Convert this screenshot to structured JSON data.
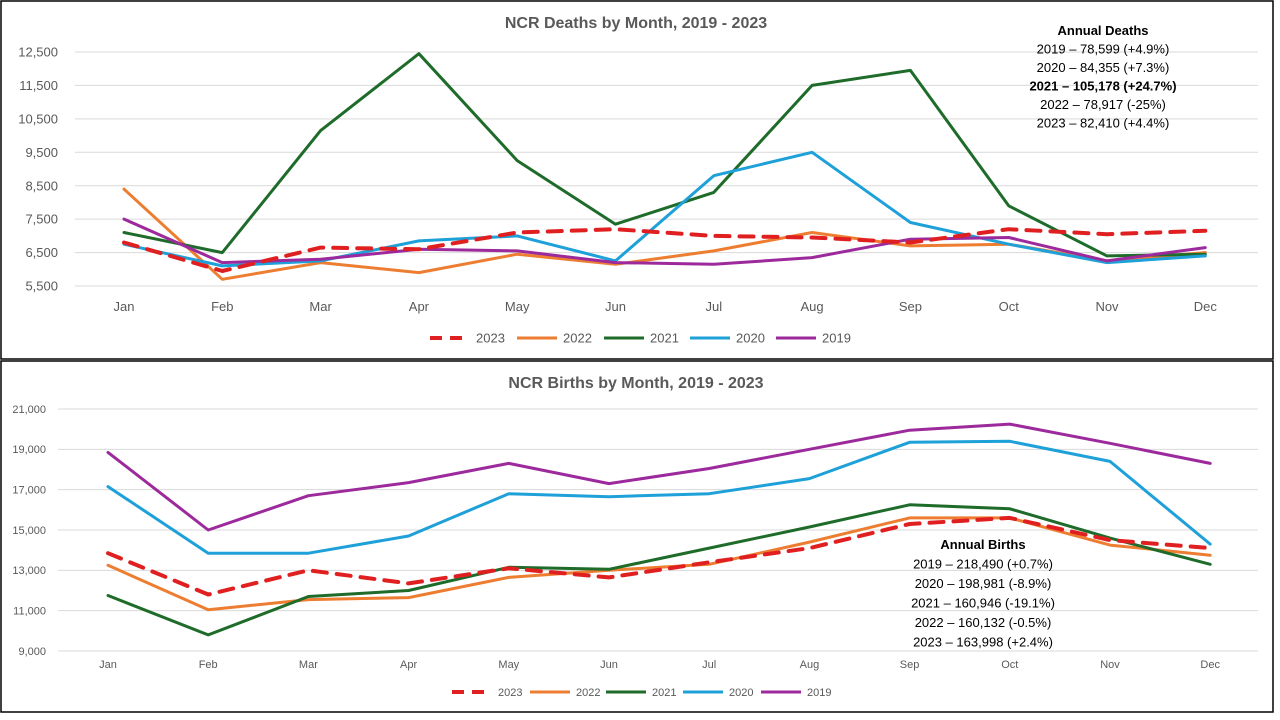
{
  "chart_data": [
    {
      "type": "line",
      "title": "NCR Deaths by Month, 2019 - 2023",
      "categories": [
        "Jan",
        "Feb",
        "Mar",
        "Apr",
        "May",
        "Jun",
        "Jul",
        "Aug",
        "Sep",
        "Oct",
        "Nov",
        "Dec"
      ],
      "ylim": [
        5500,
        12500
      ],
      "yticks": [
        "5,500",
        "6,500",
        "7,500",
        "8,500",
        "9,500",
        "10,500",
        "11,500",
        "12,500"
      ],
      "ytick_values": [
        5500,
        6500,
        7500,
        8500,
        9500,
        10500,
        11500,
        12500
      ],
      "grid": true,
      "legend_position": "bottom",
      "series": [
        {
          "name": "2023",
          "color": "#e02020",
          "dashed": true,
          "values": [
            6800,
            5950,
            6650,
            6600,
            7100,
            7200,
            7000,
            6950,
            6800,
            7200,
            7050,
            7150
          ]
        },
        {
          "name": "2022",
          "color": "#ed7d31",
          "dashed": false,
          "values": [
            8400,
            5700,
            6200,
            5900,
            6450,
            6150,
            6550,
            7100,
            6700,
            6750,
            6250,
            6500
          ]
        },
        {
          "name": "2021",
          "color": "#1e6b2a",
          "dashed": false,
          "values": [
            7100,
            6500,
            10150,
            12450,
            9250,
            7350,
            8300,
            11500,
            11950,
            7900,
            6400,
            6450
          ]
        },
        {
          "name": "2020",
          "color": "#1ea0d8",
          "dashed": false,
          "values": [
            6750,
            6100,
            6250,
            6850,
            7000,
            6250,
            8800,
            9500,
            7400,
            6750,
            6200,
            6400
          ]
        },
        {
          "name": "2019",
          "color": "#9c2a9c",
          "dashed": false,
          "values": [
            7500,
            6200,
            6300,
            6600,
            6550,
            6200,
            6150,
            6350,
            6900,
            6950,
            6250,
            6650
          ]
        }
      ],
      "annotation": {
        "title": "Annual Deaths",
        "lines": [
          {
            "text": "2019 – 78,599 (+4.9%)",
            "bold": false
          },
          {
            "text": "2020 – 84,355 (+7.3%)",
            "bold": false
          },
          {
            "text": "2021 – 105,178 (+24.7%)",
            "bold": true
          },
          {
            "text": "2022 – 78,917 (-25%)",
            "bold": false
          },
          {
            "text": "2023 – 82,410 (+4.4%)",
            "bold": false
          }
        ]
      }
    },
    {
      "type": "line",
      "title": "NCR Births by Month, 2019 - 2023",
      "categories": [
        "Jan",
        "Feb",
        "Mar",
        "Apr",
        "May",
        "Jun",
        "Jul",
        "Aug",
        "Sep",
        "Oct",
        "Nov",
        "Dec"
      ],
      "ylim": [
        9000,
        21000
      ],
      "yticks": [
        "9,000",
        "11,000",
        "13,000",
        "15,000",
        "17,000",
        "19,000",
        "21,000"
      ],
      "ytick_values": [
        9000,
        11000,
        13000,
        15000,
        17000,
        19000,
        21000
      ],
      "grid": true,
      "legend_position": "bottom",
      "series": [
        {
          "name": "2023",
          "color": "#e02020",
          "dashed": true,
          "values": [
            13850,
            11800,
            13000,
            12350,
            13100,
            12650,
            13400,
            14100,
            15300,
            15600,
            14500,
            14100
          ]
        },
        {
          "name": "2022",
          "color": "#ed7d31",
          "dashed": false,
          "values": [
            13250,
            11050,
            11550,
            11650,
            12650,
            13000,
            13300,
            14400,
            15600,
            15600,
            14250,
            13750
          ]
        },
        {
          "name": "2021",
          "color": "#1e6b2a",
          "dashed": false,
          "values": [
            11750,
            9800,
            11700,
            12000,
            13150,
            13050,
            14100,
            15150,
            16250,
            16050,
            14600,
            13300
          ]
        },
        {
          "name": "2020",
          "color": "#1ea0d8",
          "dashed": false,
          "values": [
            17150,
            13850,
            13850,
            14700,
            16800,
            16650,
            16800,
            17550,
            19350,
            19400,
            18400,
            14300
          ]
        },
        {
          "name": "2019",
          "color": "#9c2a9c",
          "dashed": false,
          "values": [
            18850,
            15000,
            16700,
            17350,
            18300,
            17300,
            18050,
            19000,
            19950,
            20250,
            19300,
            18300
          ]
        }
      ],
      "annotation": {
        "title": "Annual Births",
        "lines": [
          {
            "text": "2019 – 218,490 (+0.7%)",
            "bold": false
          },
          {
            "text": "2020 – 198,981 (-8.9%)",
            "bold": false
          },
          {
            "text": "2021 – 160,946 (-19.1%)",
            "bold": false
          },
          {
            "text": "2022 – 160,132 (-0.5%)",
            "bold": false
          },
          {
            "text": "2023 – 163,998 (+2.4%)",
            "bold": false
          }
        ]
      }
    }
  ]
}
